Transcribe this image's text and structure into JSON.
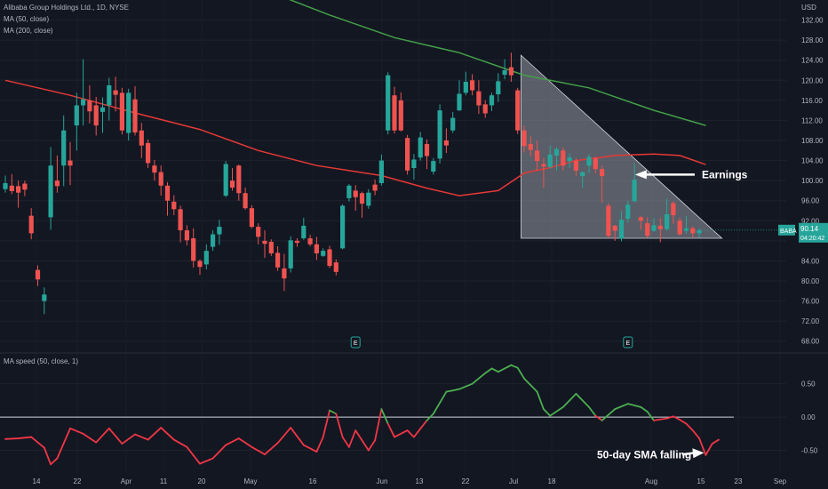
{
  "legend": {
    "symbol_line": "Alibaba Group Holdings Ltd., 1D, NYSE",
    "ma50_label": "MA (50, close)",
    "ma200_label": "MA (200, close)",
    "ma_speed_label": "MA speed (50, close, 1)"
  },
  "price_axis": {
    "currency": "USD",
    "ticks": [
      68,
      72,
      76,
      80,
      84,
      88,
      92,
      96,
      100,
      104,
      108,
      112,
      116,
      120,
      124,
      128,
      132
    ],
    "tick_labels": [
      "68.00",
      "72.00",
      "76.00",
      "80.00",
      "84.00",
      "",
      "92.00",
      "96.00",
      "100.00",
      "104.00",
      "108.00",
      "112.00",
      "116.00",
      "120.00",
      "124.00",
      "128.00",
      "132.00"
    ],
    "last_price": {
      "ticker": "BABA",
      "value": "90.14",
      "countdown": "04:20:42",
      "price": 90.14,
      "color": "#26a69a"
    }
  },
  "time_axis": {
    "labels": [
      "14",
      "22",
      "Apr",
      "11",
      "20",
      "May",
      "16",
      "Jun",
      "13",
      "22",
      "Jul",
      "18",
      "Aug",
      "15",
      "23",
      "Sep"
    ]
  },
  "colors": {
    "background": "#131722",
    "up": "#26a69a",
    "down": "#ef5350",
    "ma50": "#e53935",
    "ma200": "#43a047",
    "speed_pos": "#4caf50",
    "speed_neg": "#f23645",
    "triangle_fill": "rgba(178,181,190,0.45)"
  },
  "annotations": {
    "earnings": "Earnings",
    "sma_falling": "50-day SMA falling"
  },
  "earnings_markers": [
    "E",
    "E"
  ],
  "speed_axis": {
    "ticks": [
      0.5,
      0.0,
      -0.5
    ],
    "tick_labels": [
      "0.50",
      "0.00",
      "-0.50"
    ]
  },
  "chart_data": {
    "type": "candlestick",
    "title": "Alibaba Group Holdings Ltd., 1D, NYSE",
    "ylabel": "USD",
    "ylim": [
      66,
      136
    ],
    "candles": [
      {
        "o": 98.3,
        "c": 99.5,
        "h": 101.0,
        "l": 97.6
      },
      {
        "o": 99.0,
        "c": 97.9,
        "h": 101.3,
        "l": 97.3
      },
      {
        "o": 98.9,
        "c": 97.6,
        "h": 100.0,
        "l": 94.6
      },
      {
        "o": 99.4,
        "c": 98.2,
        "h": 100.0,
        "l": 96.9
      },
      {
        "o": 93.0,
        "c": 89.5,
        "h": 94.5,
        "l": 88.3
      },
      {
        "o": 82.2,
        "c": 80.3,
        "h": 83.1,
        "l": 79.0
      },
      {
        "o": 76.0,
        "c": 77.3,
        "h": 78.7,
        "l": 73.4
      },
      {
        "o": 92.7,
        "c": 103.0,
        "h": 106.7,
        "l": 90.2
      },
      {
        "o": 100.0,
        "c": 98.9,
        "h": 105.0,
        "l": 97.6
      },
      {
        "o": 103.0,
        "c": 110.0,
        "h": 113.0,
        "l": 98.9
      },
      {
        "o": 104.0,
        "c": 103.0,
        "h": 107.7,
        "l": 99.1
      },
      {
        "o": 111.0,
        "c": 115.0,
        "h": 117.5,
        "l": 106.0
      },
      {
        "o": 115.0,
        "c": 116.2,
        "h": 124.2,
        "l": 111.0
      },
      {
        "o": 116.0,
        "c": 113.8,
        "h": 119.0,
        "l": 111.4
      },
      {
        "o": 115.0,
        "c": 111.0,
        "h": 116.7,
        "l": 109.0
      },
      {
        "o": 113.7,
        "c": 114.6,
        "h": 116.6,
        "l": 109.5
      },
      {
        "o": 115.0,
        "c": 119.0,
        "h": 120.5,
        "l": 112.0
      },
      {
        "o": 118.0,
        "c": 117.1,
        "h": 120.7,
        "l": 113.8
      },
      {
        "o": 117.5,
        "c": 110.0,
        "h": 118.5,
        "l": 109.2
      },
      {
        "o": 109.5,
        "c": 117.5,
        "h": 118.3,
        "l": 108.0
      },
      {
        "o": 116.2,
        "c": 109.6,
        "h": 118.8,
        "l": 109.0
      },
      {
        "o": 110.0,
        "c": 107.0,
        "h": 111.5,
        "l": 104.5
      },
      {
        "o": 107.5,
        "c": 103.5,
        "h": 108.2,
        "l": 102.5
      },
      {
        "o": 103.0,
        "c": 101.6,
        "h": 104.1,
        "l": 100.0
      },
      {
        "o": 101.7,
        "c": 99.0,
        "h": 103.0,
        "l": 97.0
      },
      {
        "o": 99.0,
        "c": 96.0,
        "h": 99.7,
        "l": 93.0
      },
      {
        "o": 95.8,
        "c": 94.3,
        "h": 97.1,
        "l": 93.1
      },
      {
        "o": 94.3,
        "c": 90.1,
        "h": 95.0,
        "l": 87.7
      },
      {
        "o": 90.1,
        "c": 88.1,
        "h": 91.1,
        "l": 87.1
      },
      {
        "o": 88.5,
        "c": 84.0,
        "h": 90.5,
        "l": 82.7
      },
      {
        "o": 84.0,
        "c": 82.8,
        "h": 84.3,
        "l": 81.2
      },
      {
        "o": 83.3,
        "c": 86.0,
        "h": 87.3,
        "l": 82.3
      },
      {
        "o": 86.8,
        "c": 89.3,
        "h": 90.1,
        "l": 86.0
      },
      {
        "o": 89.3,
        "c": 90.8,
        "h": 92.2,
        "l": 87.2
      },
      {
        "o": 97.0,
        "c": 103.3,
        "h": 103.9,
        "l": 96.7
      },
      {
        "o": 100.0,
        "c": 98.6,
        "h": 102.5,
        "l": 98.0
      },
      {
        "o": 103.0,
        "c": 97.5,
        "h": 103.2,
        "l": 96.0
      },
      {
        "o": 97.5,
        "c": 94.5,
        "h": 98.6,
        "l": 94.2
      },
      {
        "o": 94.5,
        "c": 90.8,
        "h": 95.1,
        "l": 90.5
      },
      {
        "o": 90.8,
        "c": 88.8,
        "h": 91.5,
        "l": 87.3
      },
      {
        "o": 88.0,
        "c": 87.4,
        "h": 90.1,
        "l": 84.6
      },
      {
        "o": 87.8,
        "c": 85.5,
        "h": 88.3,
        "l": 85.0
      },
      {
        "o": 85.6,
        "c": 82.7,
        "h": 86.9,
        "l": 82.0
      },
      {
        "o": 82.5,
        "c": 80.5,
        "h": 85.4,
        "l": 78.0
      },
      {
        "o": 82.5,
        "c": 88.1,
        "h": 88.9,
        "l": 81.7
      },
      {
        "o": 88.0,
        "c": 87.6,
        "h": 88.5,
        "l": 86.8
      },
      {
        "o": 88.5,
        "c": 91.0,
        "h": 92.6,
        "l": 88.2
      },
      {
        "o": 88.5,
        "c": 87.3,
        "h": 89.2,
        "l": 86.9
      },
      {
        "o": 87.3,
        "c": 85.5,
        "h": 88.8,
        "l": 84.2
      },
      {
        "o": 85.0,
        "c": 86.0,
        "h": 86.5,
        "l": 84.8
      },
      {
        "o": 86.3,
        "c": 83.0,
        "h": 87.0,
        "l": 82.6
      },
      {
        "o": 83.7,
        "c": 81.8,
        "h": 84.3,
        "l": 81.1
      },
      {
        "o": 86.5,
        "c": 95.0,
        "h": 95.3,
        "l": 86.3
      },
      {
        "o": 96.5,
        "c": 99.0,
        "h": 99.3,
        "l": 95.8
      },
      {
        "o": 98.0,
        "c": 96.7,
        "h": 99.1,
        "l": 94.0
      },
      {
        "o": 97.5,
        "c": 95.4,
        "h": 97.8,
        "l": 92.6
      },
      {
        "o": 95.0,
        "c": 97.6,
        "h": 98.3,
        "l": 94.4
      },
      {
        "o": 99.2,
        "c": 98.0,
        "h": 100.2,
        "l": 97.1
      },
      {
        "o": 99.5,
        "c": 104.0,
        "h": 105.2,
        "l": 99.0
      },
      {
        "o": 110.0,
        "c": 121.0,
        "h": 121.6,
        "l": 109.2
      },
      {
        "o": 117.0,
        "c": 110.0,
        "h": 118.7,
        "l": 109.4
      },
      {
        "o": 116.0,
        "c": 110.0,
        "h": 117.6,
        "l": 109.8
      },
      {
        "o": 108.5,
        "c": 102.0,
        "h": 109.1,
        "l": 101.2
      },
      {
        "o": 102.5,
        "c": 104.2,
        "h": 105.3,
        "l": 100.2
      },
      {
        "o": 104.6,
        "c": 108.6,
        "h": 109.7,
        "l": 104.0
      },
      {
        "o": 107.3,
        "c": 104.9,
        "h": 108.2,
        "l": 102.3
      },
      {
        "o": 101.8,
        "c": 103.9,
        "h": 104.5,
        "l": 101.2
      },
      {
        "o": 104.4,
        "c": 114.0,
        "h": 115.2,
        "l": 103.4
      },
      {
        "o": 108.0,
        "c": 107.0,
        "h": 110.4,
        "l": 105.5
      },
      {
        "o": 110.0,
        "c": 112.5,
        "h": 113.7,
        "l": 109.5
      },
      {
        "o": 114.0,
        "c": 117.3,
        "h": 120.0,
        "l": 113.9
      },
      {
        "o": 117.5,
        "c": 119.7,
        "h": 121.7,
        "l": 117.0
      },
      {
        "o": 120.0,
        "c": 118.0,
        "h": 121.2,
        "l": 117.0
      },
      {
        "o": 117.8,
        "c": 115.0,
        "h": 120.0,
        "l": 113.3
      },
      {
        "o": 115.2,
        "c": 113.4,
        "h": 116.0,
        "l": 112.5
      },
      {
        "o": 115.0,
        "c": 117.0,
        "h": 117.5,
        "l": 113.9
      },
      {
        "o": 117.2,
        "c": 119.8,
        "h": 121.4,
        "l": 115.7
      },
      {
        "o": 121.1,
        "c": 122.0,
        "h": 124.2,
        "l": 120.2
      },
      {
        "o": 122.6,
        "c": 121.0,
        "h": 125.5,
        "l": 119.7
      },
      {
        "o": 118.0,
        "c": 110.0,
        "h": 118.5,
        "l": 109.3
      },
      {
        "o": 110.0,
        "c": 106.9,
        "h": 110.9,
        "l": 105.6
      },
      {
        "o": 107.3,
        "c": 106.1,
        "h": 108.8,
        "l": 104.8
      },
      {
        "o": 106.0,
        "c": 103.9,
        "h": 108.0,
        "l": 102.0
      },
      {
        "o": 103.3,
        "c": 102.8,
        "h": 104.5,
        "l": 98.6
      },
      {
        "o": 102.7,
        "c": 105.2,
        "h": 107.0,
        "l": 102.4
      },
      {
        "o": 105.0,
        "c": 106.3,
        "h": 106.7,
        "l": 102.0
      },
      {
        "o": 106.0,
        "c": 103.0,
        "h": 106.6,
        "l": 102.0
      },
      {
        "o": 103.9,
        "c": 104.6,
        "h": 105.5,
        "l": 102.5
      },
      {
        "o": 104.0,
        "c": 102.0,
        "h": 104.5,
        "l": 101.0
      },
      {
        "o": 100.9,
        "c": 101.7,
        "h": 101.8,
        "l": 98.6
      },
      {
        "o": 103.0,
        "c": 104.7,
        "h": 105.3,
        "l": 101.5
      },
      {
        "o": 104.5,
        "c": 102.3,
        "h": 104.8,
        "l": 101.5
      },
      {
        "o": 102.3,
        "c": 100.9,
        "h": 103.0,
        "l": 95.6
      },
      {
        "o": 95.0,
        "c": 89.0,
        "h": 95.5,
        "l": 88.5
      },
      {
        "o": 91.0,
        "c": 90.0,
        "h": 91.2,
        "l": 88.0
      },
      {
        "o": 88.4,
        "c": 92.2,
        "h": 93.9,
        "l": 87.9
      },
      {
        "o": 92.4,
        "c": 95.2,
        "h": 96.0,
        "l": 91.6
      },
      {
        "o": 95.9,
        "c": 100.2,
        "h": 103.5,
        "l": 95.6
      },
      {
        "o": 92.7,
        "c": 92.0,
        "h": 92.9,
        "l": 90.2
      },
      {
        "o": 91.5,
        "c": 89.0,
        "h": 92.7,
        "l": 88.6
      },
      {
        "o": 90.0,
        "c": 91.1,
        "h": 92.6,
        "l": 89.8
      },
      {
        "o": 91.0,
        "c": 90.3,
        "h": 92.5,
        "l": 87.7
      },
      {
        "o": 90.3,
        "c": 93.3,
        "h": 96.4,
        "l": 90.0
      },
      {
        "o": 95.5,
        "c": 93.1,
        "h": 95.9,
        "l": 91.4
      },
      {
        "o": 92.0,
        "c": 89.3,
        "h": 92.6,
        "l": 89.1
      },
      {
        "o": 90.0,
        "c": 90.5,
        "h": 93.0,
        "l": 89.4
      },
      {
        "o": 90.5,
        "c": 89.5,
        "h": 90.9,
        "l": 88.7
      },
      {
        "o": 89.5,
        "c": 90.1,
        "h": 90.5,
        "l": 88.6
      }
    ],
    "ma50": [
      {
        "x": 0,
        "y": 120.0
      },
      {
        "x": 10,
        "y": 117.0
      },
      {
        "x": 20,
        "y": 113.5
      },
      {
        "x": 30,
        "y": 110.2
      },
      {
        "x": 39,
        "y": 106.0
      },
      {
        "x": 48,
        "y": 103.0
      },
      {
        "x": 58,
        "y": 101.0
      },
      {
        "x": 65,
        "y": 98.5
      },
      {
        "x": 70,
        "y": 97.0
      },
      {
        "x": 76,
        "y": 98.0
      },
      {
        "x": 80,
        "y": 101.5
      },
      {
        "x": 84,
        "y": 102.6
      },
      {
        "x": 88,
        "y": 104.0
      },
      {
        "x": 94,
        "y": 105.0
      },
      {
        "x": 100,
        "y": 105.3
      },
      {
        "x": 104,
        "y": 105.0
      },
      {
        "x": 108,
        "y": 103.2
      }
    ],
    "ma200": [
      {
        "x": 40,
        "y": 138.0
      },
      {
        "x": 50,
        "y": 133.0
      },
      {
        "x": 60,
        "y": 128.5
      },
      {
        "x": 70,
        "y": 125.5
      },
      {
        "x": 80,
        "y": 121.0
      },
      {
        "x": 90,
        "y": 118.5
      },
      {
        "x": 100,
        "y": 114.0
      },
      {
        "x": 108,
        "y": 111.0
      }
    ],
    "ma_speed": [
      {
        "x": 0,
        "y": -0.33
      },
      {
        "x": 2,
        "y": -0.32
      },
      {
        "x": 4,
        "y": -0.3
      },
      {
        "x": 6,
        "y": -0.46
      },
      {
        "x": 7,
        "y": -0.71
      },
      {
        "x": 8,
        "y": -0.62
      },
      {
        "x": 10,
        "y": -0.17
      },
      {
        "x": 12,
        "y": -0.25
      },
      {
        "x": 14,
        "y": -0.38
      },
      {
        "x": 16,
        "y": -0.17
      },
      {
        "x": 18,
        "y": -0.4
      },
      {
        "x": 20,
        "y": -0.26
      },
      {
        "x": 22,
        "y": -0.34
      },
      {
        "x": 24,
        "y": -0.16
      },
      {
        "x": 26,
        "y": -0.34
      },
      {
        "x": 28,
        "y": -0.45
      },
      {
        "x": 30,
        "y": -0.7
      },
      {
        "x": 32,
        "y": -0.62
      },
      {
        "x": 34,
        "y": -0.42
      },
      {
        "x": 36,
        "y": -0.32
      },
      {
        "x": 38,
        "y": -0.45
      },
      {
        "x": 40,
        "y": -0.56
      },
      {
        "x": 42,
        "y": -0.39
      },
      {
        "x": 44,
        "y": -0.16
      },
      {
        "x": 46,
        "y": -0.42
      },
      {
        "x": 48,
        "y": -0.52
      },
      {
        "x": 49,
        "y": -0.3
      },
      {
        "x": 50,
        "y": 0.1
      },
      {
        "x": 51,
        "y": 0.05
      },
      {
        "x": 52,
        "y": -0.3
      },
      {
        "x": 53,
        "y": -0.45
      },
      {
        "x": 54,
        "y": -0.2
      },
      {
        "x": 56,
        "y": -0.5
      },
      {
        "x": 57,
        "y": -0.35
      },
      {
        "x": 58,
        "y": 0.12
      },
      {
        "x": 59,
        "y": -0.1
      },
      {
        "x": 60,
        "y": -0.3
      },
      {
        "x": 62,
        "y": -0.2
      },
      {
        "x": 63,
        "y": -0.3
      },
      {
        "x": 65,
        "y": -0.05
      },
      {
        "x": 66,
        "y": 0.05
      },
      {
        "x": 68,
        "y": 0.38
      },
      {
        "x": 70,
        "y": 0.42
      },
      {
        "x": 72,
        "y": 0.5
      },
      {
        "x": 74,
        "y": 0.66
      },
      {
        "x": 75,
        "y": 0.73
      },
      {
        "x": 76,
        "y": 0.68
      },
      {
        "x": 78,
        "y": 0.78
      },
      {
        "x": 79,
        "y": 0.74
      },
      {
        "x": 80,
        "y": 0.58
      },
      {
        "x": 82,
        "y": 0.38
      },
      {
        "x": 83,
        "y": 0.12
      },
      {
        "x": 84,
        "y": 0.02
      },
      {
        "x": 86,
        "y": 0.15
      },
      {
        "x": 88,
        "y": 0.35
      },
      {
        "x": 90,
        "y": 0.15
      },
      {
        "x": 91,
        "y": 0.02
      },
      {
        "x": 92,
        "y": -0.05
      },
      {
        "x": 94,
        "y": 0.12
      },
      {
        "x": 96,
        "y": 0.2
      },
      {
        "x": 98,
        "y": 0.15
      },
      {
        "x": 99,
        "y": 0.08
      },
      {
        "x": 100,
        "y": -0.05
      },
      {
        "x": 102,
        "y": -0.02
      },
      {
        "x": 103,
        "y": 0.01
      },
      {
        "x": 104,
        "y": -0.04
      },
      {
        "x": 105,
        "y": -0.1
      },
      {
        "x": 106,
        "y": -0.2
      },
      {
        "x": 107,
        "y": -0.32
      },
      {
        "x": 108,
        "y": -0.57
      },
      {
        "x": 109,
        "y": -0.4
      },
      {
        "x": 110,
        "y": -0.34
      }
    ],
    "speed_ylim": [
      -0.84,
      0.95
    ],
    "triangle": [
      {
        "x": 79.5,
        "y": 125.0
      },
      {
        "x": 79.5,
        "y": 88.5
      },
      {
        "x": 110.5,
        "y": 88.5
      }
    ],
    "earnings_bar_index": [
      54,
      96
    ],
    "earnings_arrow_price": 101.2,
    "sma_falling_arrow_index": 108
  }
}
